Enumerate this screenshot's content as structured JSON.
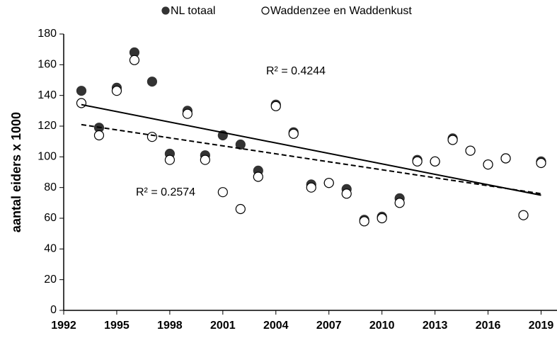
{
  "chart_data": {
    "type": "scatter",
    "ylabel": "aantal eiders x 1000",
    "x": [
      1993,
      1994,
      1995,
      1996,
      1997,
      1998,
      1999,
      2000,
      2001,
      2002,
      2003,
      2004,
      2005,
      2006,
      2007,
      2008,
      2009,
      2010,
      2011,
      2012,
      2013,
      2014,
      2015,
      2016,
      2017,
      2018,
      2019
    ],
    "series": [
      {
        "name": "NL totaal",
        "color": "#333333",
        "stroke": "#333333",
        "values": [
          143,
          119,
          145,
          168,
          149,
          102,
          130,
          101,
          114,
          108,
          91,
          134,
          116,
          82,
          83,
          79,
          59,
          61,
          73,
          98,
          97,
          112,
          104,
          95,
          99,
          62,
          97
        ],
        "trendline": {
          "x": [
            1993,
            2019
          ],
          "values": [
            134,
            75
          ],
          "dash": false
        },
        "r2_label": "R² = 0.4244"
      },
      {
        "name": "Waddenzee en Waddenkust",
        "color": "#ffffff",
        "stroke": "#000000",
        "values": [
          135,
          114,
          143,
          163,
          113,
          98,
          128,
          98,
          77,
          66,
          87,
          133,
          115,
          80,
          83,
          76,
          58,
          60,
          70,
          97,
          97,
          111,
          104,
          95,
          99,
          62,
          96
        ],
        "trendline": {
          "x": [
            1993,
            2019
          ],
          "values": [
            121,
            76
          ],
          "dash": true
        },
        "r2_label": "R² = 0.2574"
      }
    ],
    "xlim": [
      1992,
      2019.9
    ],
    "xticks": [
      1992,
      1995,
      1998,
      2001,
      2004,
      2007,
      2010,
      2013,
      2016,
      2019
    ],
    "ylim": [
      0,
      180
    ],
    "yticks": [
      0,
      20,
      40,
      60,
      80,
      100,
      120,
      140,
      160,
      180
    ],
    "legend": "top"
  }
}
